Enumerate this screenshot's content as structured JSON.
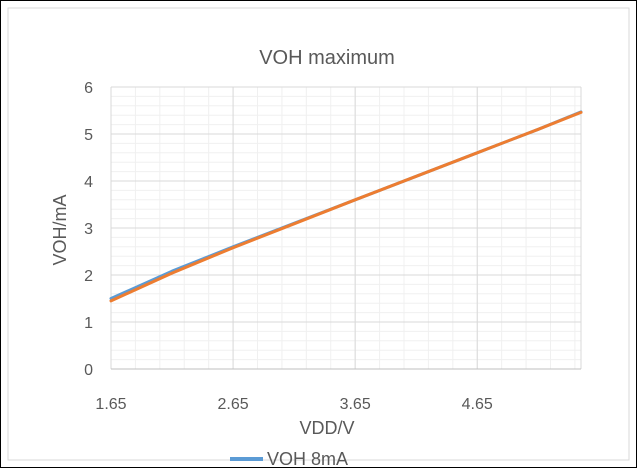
{
  "chart_data": {
    "type": "line",
    "title": "VOH maximum",
    "xlabel": "VDD/V",
    "ylabel": "VOH/mA",
    "xlim": [
      1.65,
      5.5
    ],
    "ylim": [
      0,
      6
    ],
    "x_ticks": [
      "1.65",
      "2.65",
      "3.65",
      "4.65"
    ],
    "y_ticks": [
      "0",
      "1",
      "2",
      "3",
      "4",
      "5",
      "6"
    ],
    "grid": true,
    "legend_position": "bottom",
    "series": [
      {
        "name": "VOH  8mA",
        "color": "#5B9BD5",
        "x": [
          1.65,
          2.15,
          2.65,
          3.15,
          3.65,
          4.15,
          4.65,
          5.15,
          5.5
        ],
        "y": [
          1.5,
          2.08,
          2.6,
          3.1,
          3.6,
          4.1,
          4.6,
          5.1,
          5.47
        ]
      },
      {
        "name": "",
        "color": "#ED7D31",
        "x": [
          1.65,
          2.15,
          2.65,
          3.15,
          3.65,
          4.15,
          4.65,
          5.15,
          5.5
        ],
        "y": [
          1.45,
          2.04,
          2.58,
          3.09,
          3.6,
          4.1,
          4.6,
          5.1,
          5.46
        ]
      }
    ]
  }
}
